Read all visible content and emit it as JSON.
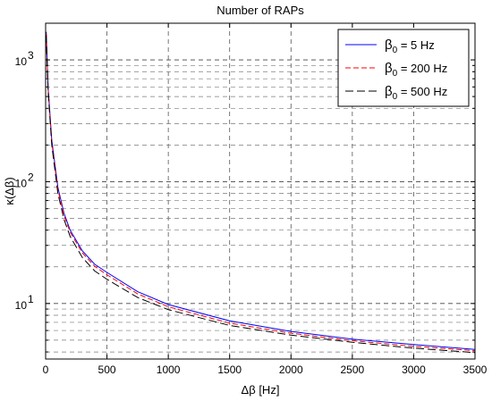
{
  "chart_data": {
    "type": "line",
    "title": "Number of RAPs",
    "xlabel": "Δβ [Hz]",
    "ylabel": "κ(Δβ)",
    "xlim": [
      0,
      3500
    ],
    "ylim": [
      3.5,
      2000
    ],
    "yscale": "log",
    "grid": true,
    "legend_position": "top-right",
    "x_ticks": [
      "0",
      "500",
      "1000",
      "1500",
      "2000",
      "2500",
      "3000",
      "3500"
    ],
    "y_ticks": [
      {
        "value": 10,
        "base": "10",
        "exp": "1"
      },
      {
        "value": 100,
        "base": "10",
        "exp": "2"
      },
      {
        "value": 1000,
        "base": "10",
        "exp": "3"
      }
    ],
    "series": [
      {
        "name": "β0 = 5 Hz",
        "label_main": "β",
        "label_sub": "0",
        "label_rest": " = 5 Hz",
        "color": "#0000ff",
        "dash": "solid",
        "x": [
          5,
          20,
          50,
          100,
          150,
          200,
          300,
          400,
          500,
          750,
          1000,
          1500,
          2000,
          2500,
          3000,
          3500
        ],
        "y": [
          1700,
          600,
          220,
          90,
          55,
          40,
          27,
          21,
          18,
          12.5,
          9.8,
          7.2,
          5.9,
          5.1,
          4.6,
          4.2
        ]
      },
      {
        "name": "β0 = 200 Hz",
        "label_main": "β",
        "label_sub": "0",
        "label_rest": " = 200 Hz",
        "color": "#ff0000",
        "dash": "dashed",
        "x": [
          5,
          20,
          50,
          100,
          150,
          200,
          300,
          400,
          500,
          750,
          1000,
          1500,
          2000,
          2500,
          3000,
          3500
        ],
        "y": [
          1650,
          580,
          210,
          86,
          53,
          38.5,
          26,
          20.2,
          17.2,
          12,
          9.4,
          6.9,
          5.7,
          4.95,
          4.45,
          4.1
        ]
      },
      {
        "name": "β0 = 500 Hz",
        "label_main": "β",
        "label_sub": "0",
        "label_rest": " = 500 Hz",
        "color": "#000000",
        "dash": "dashed",
        "x": [
          5,
          20,
          50,
          100,
          150,
          200,
          300,
          400,
          500,
          750,
          1000,
          1500,
          2000,
          2500,
          3000,
          3500
        ],
        "y": [
          1600,
          560,
          200,
          80,
          49,
          35.5,
          23.8,
          18.5,
          15.8,
          11.2,
          8.9,
          6.6,
          5.5,
          4.8,
          4.3,
          3.95
        ]
      }
    ]
  }
}
